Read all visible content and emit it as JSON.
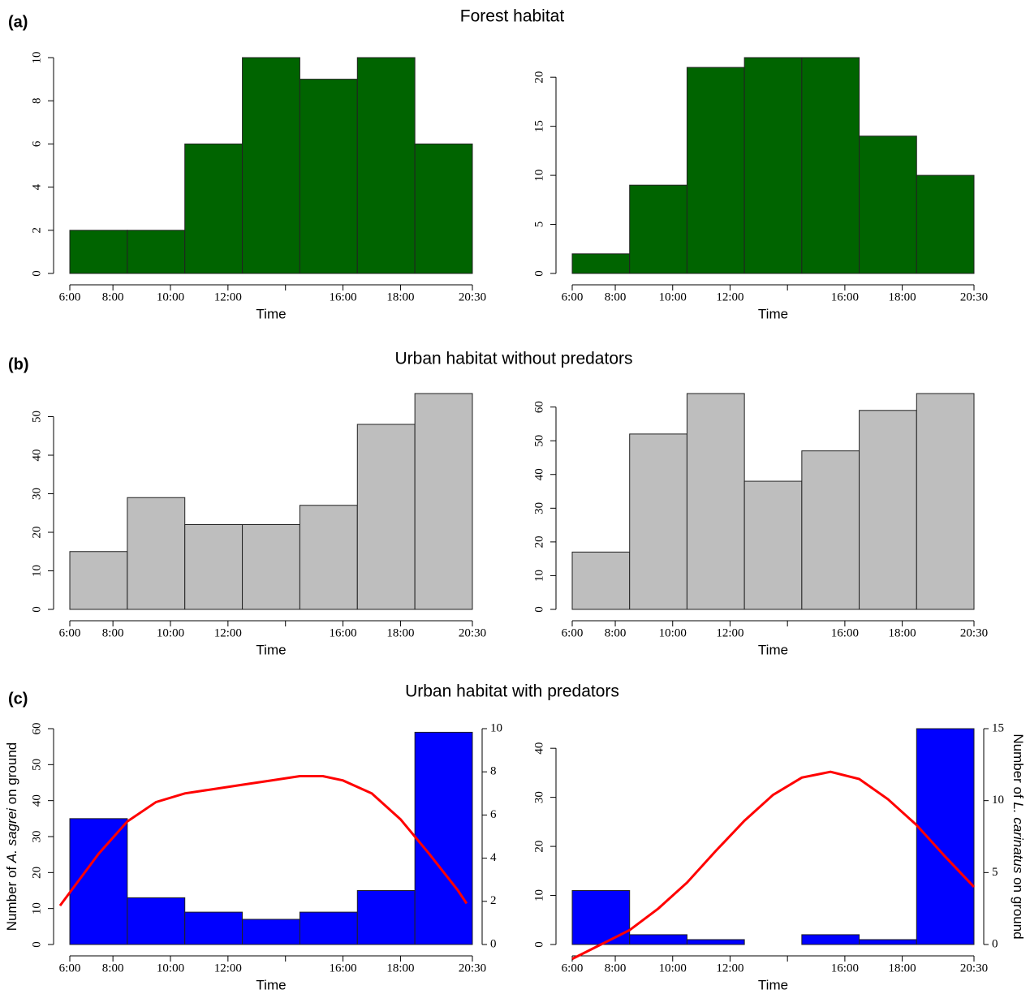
{
  "sections": [
    {
      "label": "(a)",
      "title": "Forest habitat"
    },
    {
      "label": "(b)",
      "title": "Urban habitat without predators"
    },
    {
      "label": "(c)",
      "title": "Urban habitat with predators"
    }
  ],
  "chart_data": [
    {
      "type": "histogram",
      "bins": [
        0,
        1,
        2,
        3,
        4,
        5,
        6,
        7
      ],
      "values": [
        2,
        2,
        6,
        10,
        9,
        10,
        6
      ],
      "color": "#006400",
      "xlim": [
        0,
        7
      ],
      "xticks": [
        {
          "value": 0,
          "label": "6:00"
        },
        {
          "value": 0.75,
          "label": "8:00"
        },
        {
          "value": 1.75,
          "label": "10:00"
        },
        {
          "value": 2.75,
          "label": "12:00"
        },
        {
          "value": 3.75,
          "label": null
        },
        {
          "value": 4.75,
          "label": "16:00"
        },
        {
          "value": 5.75,
          "label": "18:00"
        },
        {
          "value": 7,
          "label": "20:30"
        }
      ],
      "xlabel": "Time",
      "ylim": [
        0,
        10
      ],
      "yticks": [
        0,
        2,
        4,
        6,
        8,
        10
      ]
    },
    {
      "type": "histogram",
      "bins": [
        0,
        1,
        2,
        3,
        4,
        5,
        6,
        7
      ],
      "values": [
        2,
        9,
        21,
        22,
        22,
        14,
        10
      ],
      "color": "#006400",
      "xlim": [
        0,
        7
      ],
      "xticks": [
        {
          "value": 0,
          "label": "6:00"
        },
        {
          "value": 0.75,
          "label": "8:00"
        },
        {
          "value": 1.75,
          "label": "10:00"
        },
        {
          "value": 2.75,
          "label": "12:00"
        },
        {
          "value": 3.75,
          "label": null
        },
        {
          "value": 4.75,
          "label": "16:00"
        },
        {
          "value": 5.75,
          "label": "18:00"
        },
        {
          "value": 7,
          "label": "20:30"
        }
      ],
      "xlabel": "Time",
      "ylim": [
        0,
        22
      ],
      "yticks": [
        0,
        5,
        10,
        15,
        20
      ]
    },
    {
      "type": "histogram",
      "bins": [
        0,
        1,
        2,
        3,
        4,
        5,
        6,
        7
      ],
      "values": [
        15,
        29,
        22,
        22,
        27,
        48,
        56
      ],
      "color": "#bebebe",
      "xlim": [
        0,
        7
      ],
      "xticks": [
        {
          "value": 0,
          "label": "6:00"
        },
        {
          "value": 0.75,
          "label": "8:00"
        },
        {
          "value": 1.75,
          "label": "10:00"
        },
        {
          "value": 2.75,
          "label": "12:00"
        },
        {
          "value": 3.75,
          "label": null
        },
        {
          "value": 4.75,
          "label": "16:00"
        },
        {
          "value": 5.75,
          "label": "18:00"
        },
        {
          "value": 7,
          "label": "20:30"
        }
      ],
      "xlabel": "Time",
      "ylim": [
        0,
        56
      ],
      "yticks": [
        0,
        10,
        20,
        30,
        40,
        50
      ]
    },
    {
      "type": "histogram",
      "bins": [
        0,
        1,
        2,
        3,
        4,
        5,
        6,
        7
      ],
      "values": [
        17,
        52,
        64,
        38,
        47,
        59,
        64
      ],
      "color": "#bebebe",
      "xlim": [
        0,
        7
      ],
      "xticks": [
        {
          "value": 0,
          "label": "6:00"
        },
        {
          "value": 0.75,
          "label": "8:00"
        },
        {
          "value": 1.75,
          "label": "10:00"
        },
        {
          "value": 2.75,
          "label": "12:00"
        },
        {
          "value": 3.75,
          "label": null
        },
        {
          "value": 4.75,
          "label": "16:00"
        },
        {
          "value": 5.75,
          "label": "18:00"
        },
        {
          "value": 7,
          "label": "20:30"
        }
      ],
      "xlabel": "Time",
      "ylim": [
        0,
        64
      ],
      "yticks": [
        0,
        10,
        20,
        30,
        40,
        50,
        60
      ]
    },
    {
      "type": "histogram",
      "bins": [
        0,
        1,
        2,
        3,
        4,
        5,
        6,
        7
      ],
      "values": [
        35,
        13,
        9,
        7,
        9,
        15,
        59
      ],
      "color": "#0000ff",
      "xlim": [
        0,
        7
      ],
      "xticks": [
        {
          "value": 0,
          "label": "6:00"
        },
        {
          "value": 0.75,
          "label": "8:00"
        },
        {
          "value": 1.75,
          "label": "10:00"
        },
        {
          "value": 2.75,
          "label": "12:00"
        },
        {
          "value": 3.75,
          "label": null
        },
        {
          "value": 4.75,
          "label": "16:00"
        },
        {
          "value": 5.75,
          "label": "18:00"
        },
        {
          "value": 7,
          "label": "20:30"
        }
      ],
      "xlabel": "Time",
      "ylim": [
        0,
        60
      ],
      "yticks": [
        0,
        10,
        20,
        30,
        40,
        50,
        60
      ],
      "ylabel": {
        "before": "Number of ",
        "species": "A. sagrei",
        "after": " on ground"
      },
      "y2lim": [
        0,
        10
      ],
      "y2ticks": [
        0,
        2,
        4,
        6,
        8,
        10
      ],
      "line": {
        "axis": "y2",
        "color": "#ff0000",
        "x": [
          -0.17,
          0.5,
          1,
          1.5,
          2,
          2.5,
          3,
          3.5,
          4,
          4.4,
          4.75,
          5.25,
          5.75,
          6.25,
          6.75,
          6.9
        ],
        "values": [
          1.8,
          4.2,
          5.7,
          6.6,
          7.0,
          7.2,
          7.4,
          7.6,
          7.8,
          7.8,
          7.6,
          7.0,
          5.8,
          4.2,
          2.5,
          1.9
        ]
      }
    },
    {
      "type": "histogram",
      "bins": [
        0,
        1,
        2,
        3,
        4,
        5,
        6,
        7
      ],
      "values": [
        11,
        2,
        1,
        0,
        2,
        1,
        44
      ],
      "color": "#0000ff",
      "xlim": [
        0,
        7
      ],
      "xticks": [
        {
          "value": 0,
          "label": "6:00"
        },
        {
          "value": 0.75,
          "label": "8:00"
        },
        {
          "value": 1.75,
          "label": "10:00"
        },
        {
          "value": 2.75,
          "label": "12:00"
        },
        {
          "value": 3.75,
          "label": null
        },
        {
          "value": 4.75,
          "label": "16:00"
        },
        {
          "value": 5.75,
          "label": "18:00"
        },
        {
          "value": 7,
          "label": "20:30"
        }
      ],
      "xlabel": "Time",
      "ylim": [
        0,
        44
      ],
      "yticks": [
        0,
        10,
        20,
        30,
        40
      ],
      "y2label": {
        "before": "Number of ",
        "species": "L. carinatus",
        "after": " on ground"
      },
      "y2lim": [
        0,
        15
      ],
      "y2ticks": [
        0,
        5,
        10,
        15
      ],
      "line": {
        "axis": "y2",
        "color": "#ff0000",
        "x": [
          0,
          0.5,
          1,
          1.5,
          2,
          2.5,
          3,
          3.5,
          4,
          4.5,
          5,
          5.5,
          6,
          6.5,
          7
        ],
        "values": [
          -1.0,
          0.0,
          1.0,
          2.5,
          4.3,
          6.5,
          8.6,
          10.4,
          11.6,
          12.0,
          11.5,
          10.1,
          8.3,
          6.1,
          4.0
        ]
      }
    }
  ]
}
